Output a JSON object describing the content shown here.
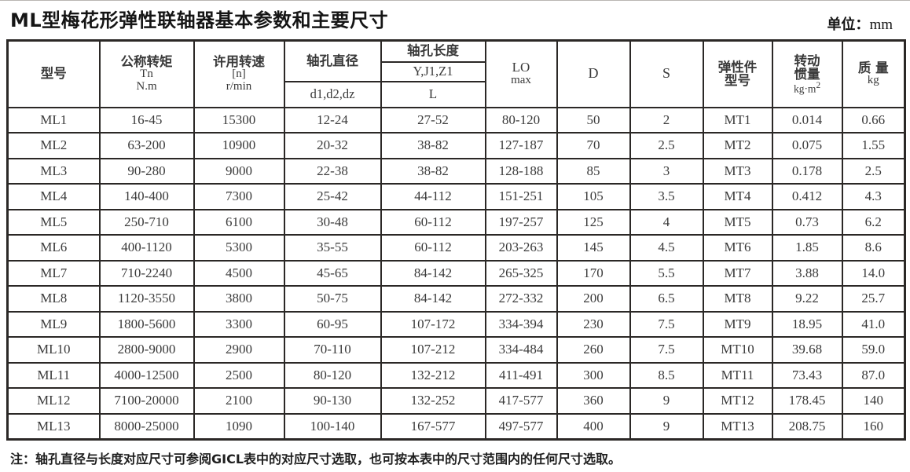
{
  "page": {
    "title": "ML型梅花形弹性联轴器基本参数和主要尺寸",
    "unit_label": "单位：",
    "unit_value": "mm"
  },
  "table": {
    "header": {
      "model": "型号",
      "torque_line1": "公称转矩",
      "torque_line2": "Tn",
      "torque_line3": "N.m",
      "speed_line1": "许用转速",
      "speed_line2": "[n]",
      "speed_line3": "r/min",
      "bore_diameter": "轴孔直径",
      "bore_diameter_sub": "d1,d2,dz",
      "bore_length": "轴孔长度",
      "bore_length_sub1": "Y,J1,Z1",
      "bore_length_sub2": "L",
      "lo_line1": "LO",
      "lo_line2": "max",
      "d": "D",
      "s": "S",
      "elastic_line1": "弹性件",
      "elastic_line2": "型号",
      "inertia_line1": "转动",
      "inertia_line2": "惯量",
      "inertia_unit": "kg·m",
      "inertia_unit_sup": "2",
      "mass_line1": "质 量",
      "mass_line2": "kg"
    },
    "rows": [
      [
        "ML1",
        "16-45",
        "15300",
        "12-24",
        "27-52",
        "80-120",
        "50",
        "2",
        "MT1",
        "0.014",
        "0.66"
      ],
      [
        "ML2",
        "63-200",
        "10900",
        "20-32",
        "38-82",
        "127-187",
        "70",
        "2.5",
        "MT2",
        "0.075",
        "1.55"
      ],
      [
        "ML3",
        "90-280",
        "9000",
        "22-38",
        "38-82",
        "128-188",
        "85",
        "3",
        "MT3",
        "0.178",
        "2.5"
      ],
      [
        "ML4",
        "140-400",
        "7300",
        "25-42",
        "44-112",
        "151-251",
        "105",
        "3.5",
        "MT4",
        "0.412",
        "4.3"
      ],
      [
        "ML5",
        "250-710",
        "6100",
        "30-48",
        "60-112",
        "197-257",
        "125",
        "4",
        "MT5",
        "0.73",
        "6.2"
      ],
      [
        "ML6",
        "400-1120",
        "5300",
        "35-55",
        "60-112",
        "203-263",
        "145",
        "4.5",
        "MT6",
        "1.85",
        "8.6"
      ],
      [
        "ML7",
        "710-2240",
        "4500",
        "45-65",
        "84-142",
        "265-325",
        "170",
        "5.5",
        "MT7",
        "3.88",
        "14.0"
      ],
      [
        "ML8",
        "1120-3550",
        "3800",
        "50-75",
        "84-142",
        "272-332",
        "200",
        "6.5",
        "MT8",
        "9.22",
        "25.7"
      ],
      [
        "ML9",
        "1800-5600",
        "3300",
        "60-95",
        "107-172",
        "334-394",
        "230",
        "7.5",
        "MT9",
        "18.95",
        "41.0"
      ],
      [
        "ML10",
        "2800-9000",
        "2900",
        "70-110",
        "107-212",
        "334-484",
        "260",
        "7.5",
        "MT10",
        "39.68",
        "59.0"
      ],
      [
        "ML11",
        "4000-12500",
        "2500",
        "80-120",
        "132-212",
        "411-491",
        "300",
        "8.5",
        "MT11",
        "73.43",
        "87.0"
      ],
      [
        "ML12",
        "7100-20000",
        "2100",
        "90-130",
        "132-252",
        "417-577",
        "360",
        "9",
        "MT12",
        "178.45",
        "140"
      ],
      [
        "ML13",
        "8000-25000",
        "1090",
        "100-140",
        "167-577",
        "497-577",
        "400",
        "9",
        "MT13",
        "208.75",
        "160"
      ]
    ]
  },
  "note": {
    "prefix": "注：",
    "text": "轴孔直径与长度对应尺寸可参阅GⅠCL表中的对应尺寸选取，也可按本表中的尺寸范围内的任何尺寸选取。"
  },
  "colors": {
    "border": "#2b2826",
    "text": "#3a3a3a",
    "title": "#151515"
  }
}
